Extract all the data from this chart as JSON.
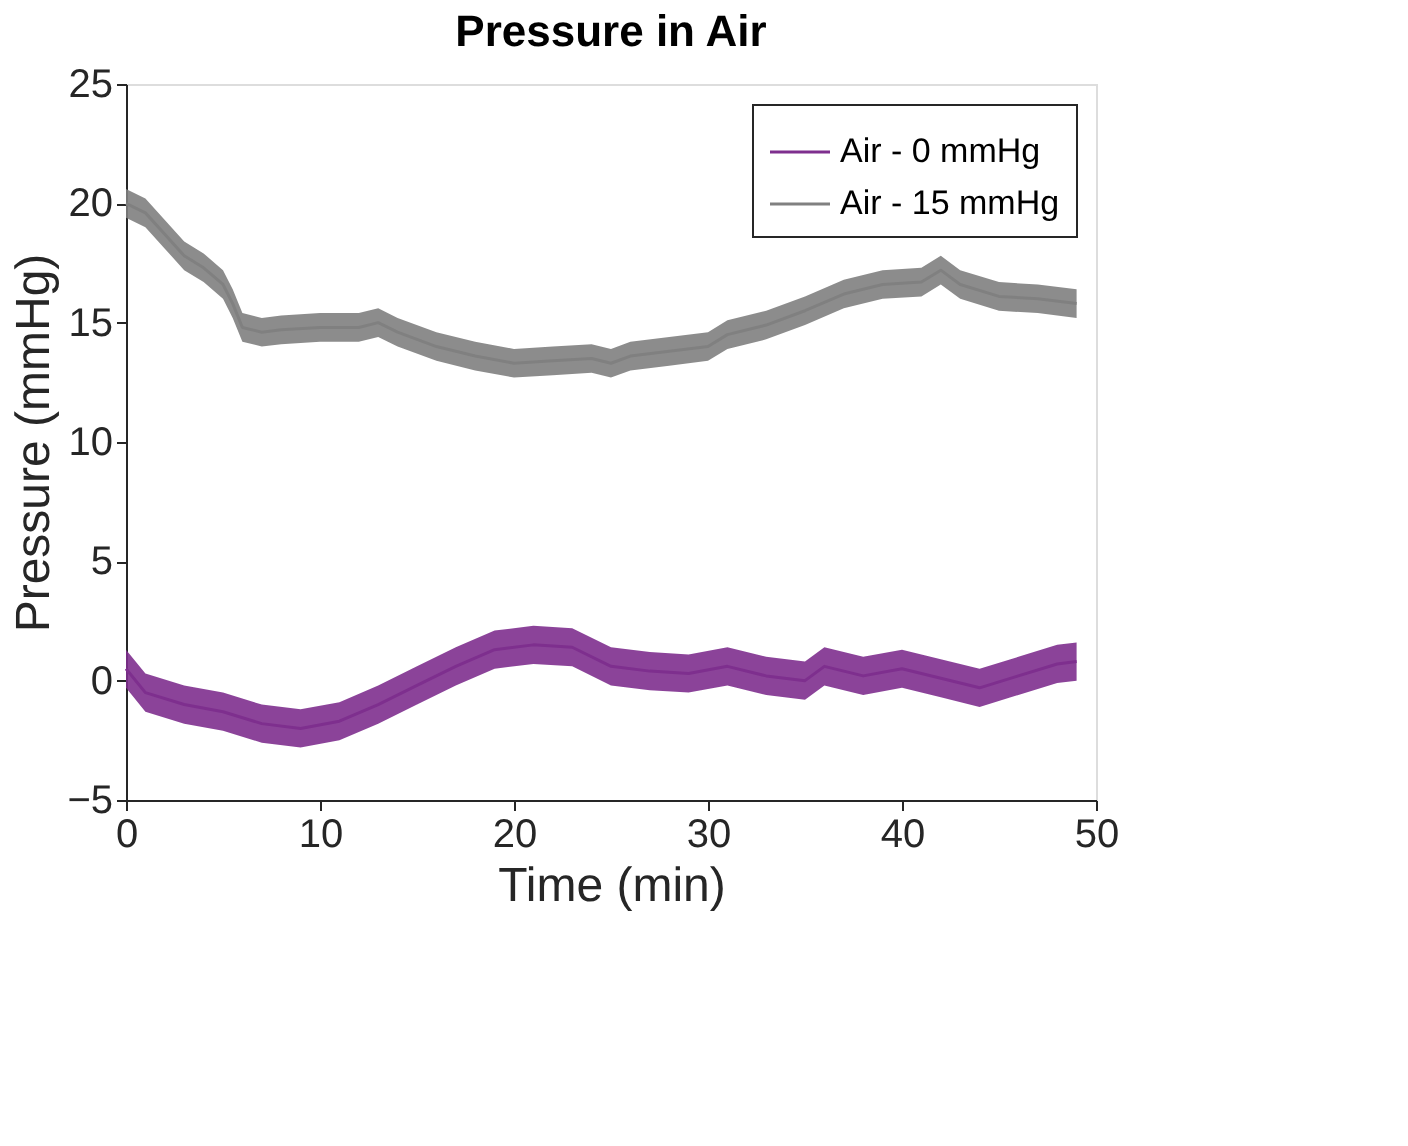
{
  "chart_data": {
    "type": "line",
    "title": "Pressure in Air",
    "xlabel": "Time (min)",
    "ylabel": "Pressure (mmHg)",
    "xlim": [
      0,
      50
    ],
    "xticks": [
      0,
      10,
      20,
      30,
      40,
      50
    ],
    "ylim": [
      -5,
      25
    ],
    "yticks": [
      -5,
      0,
      5,
      10,
      15,
      20,
      25
    ],
    "grid": false,
    "legend": "top right",
    "line_style": "solid",
    "marker": "none",
    "series": [
      {
        "name": "Air - 0 mmHg",
        "color": "#7e2f8e",
        "x": [
          0,
          1,
          3,
          5,
          7,
          9,
          11,
          13,
          15,
          17,
          19,
          21,
          23,
          25,
          27,
          29,
          31,
          33,
          35,
          36,
          38,
          40,
          42,
          44,
          46,
          48,
          49
        ],
        "values": [
          0.5,
          -0.5,
          -1.0,
          -1.3,
          -1.8,
          -2.0,
          -1.7,
          -1.0,
          -0.2,
          0.6,
          1.3,
          1.5,
          1.4,
          0.6,
          0.4,
          0.3,
          0.6,
          0.2,
          0.0,
          0.6,
          0.2,
          0.5,
          0.1,
          -0.3,
          0.2,
          0.7,
          0.8
        ],
        "lower": [
          -0.3,
          -1.3,
          -1.8,
          -2.1,
          -2.6,
          -2.8,
          -2.5,
          -1.8,
          -1.0,
          -0.2,
          0.5,
          0.7,
          0.6,
          -0.2,
          -0.4,
          -0.5,
          -0.2,
          -0.6,
          -0.8,
          -0.2,
          -0.6,
          -0.3,
          -0.7,
          -1.1,
          -0.6,
          -0.1,
          0.0
        ],
        "upper": [
          1.3,
          0.3,
          -0.2,
          -0.5,
          -1.0,
          -1.2,
          -0.9,
          -0.2,
          0.6,
          1.4,
          2.1,
          2.3,
          2.2,
          1.4,
          1.2,
          1.1,
          1.4,
          1.0,
          0.8,
          1.4,
          1.0,
          1.3,
          0.9,
          0.5,
          1.0,
          1.5,
          1.6
        ]
      },
      {
        "name": "Air - 15 mmHg",
        "color": "#808080",
        "x": [
          0,
          1,
          2,
          3,
          4,
          5,
          5.5,
          6,
          7,
          8,
          10,
          12,
          13,
          14,
          16,
          18,
          20,
          22,
          24,
          25,
          26,
          28,
          30,
          31,
          33,
          35,
          37,
          39,
          41,
          42,
          43,
          45,
          47,
          49
        ],
        "values": [
          20,
          19.6,
          18.7,
          17.8,
          17.3,
          16.6,
          15.8,
          14.8,
          14.6,
          14.7,
          14.8,
          14.8,
          15.0,
          14.6,
          14.0,
          13.6,
          13.3,
          13.4,
          13.5,
          13.3,
          13.6,
          13.8,
          14.0,
          14.5,
          14.9,
          15.5,
          16.2,
          16.6,
          16.7,
          17.2,
          16.6,
          16.1,
          16.0,
          15.8
        ],
        "lower": [
          19.4,
          19.0,
          18.1,
          17.2,
          16.7,
          16.0,
          15.2,
          14.2,
          14.0,
          14.1,
          14.2,
          14.2,
          14.4,
          14.0,
          13.4,
          13.0,
          12.7,
          12.8,
          12.9,
          12.7,
          13.0,
          13.2,
          13.4,
          13.9,
          14.3,
          14.9,
          15.6,
          16.0,
          16.1,
          16.6,
          16.0,
          15.5,
          15.4,
          15.2
        ],
        "upper": [
          20.6,
          20.2,
          19.3,
          18.4,
          17.9,
          17.2,
          16.4,
          15.4,
          15.2,
          15.3,
          15.4,
          15.4,
          15.6,
          15.2,
          14.6,
          14.2,
          13.9,
          14.0,
          14.1,
          13.9,
          14.2,
          14.4,
          14.6,
          15.1,
          15.5,
          16.1,
          16.8,
          17.2,
          17.3,
          17.8,
          17.2,
          16.7,
          16.6,
          16.4
        ]
      }
    ]
  }
}
